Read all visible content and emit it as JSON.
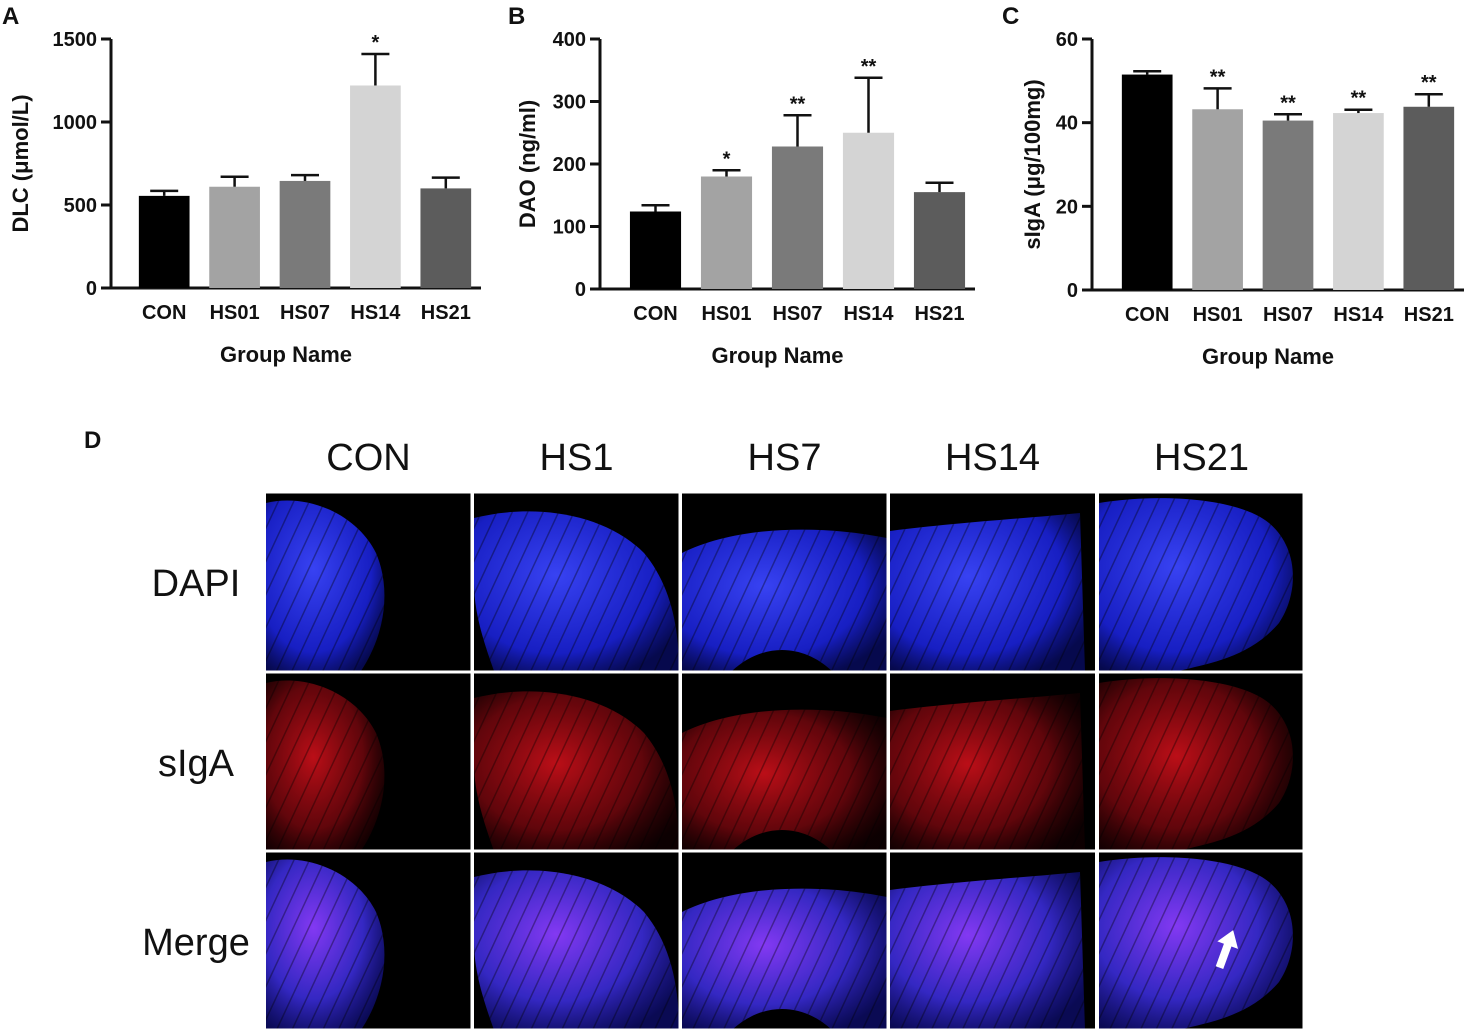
{
  "panel_letters": [
    "A",
    "B",
    "C",
    "D"
  ],
  "chart_data": [
    {
      "type": "bar",
      "panel": "A",
      "categories": [
        "CON",
        "HS01",
        "HS07",
        "HS14",
        "HS21"
      ],
      "values": [
        555,
        610,
        645,
        1220,
        600
      ],
      "errors": [
        30,
        60,
        35,
        190,
        65
      ],
      "significance": [
        "",
        "",
        "",
        "*",
        ""
      ],
      "colors": [
        "#000000",
        "#a3a3a3",
        "#7a7a7a",
        "#d4d4d4",
        "#5c5c5c"
      ],
      "xlabel": "Group Name",
      "ylabel": "DLC (μmol/L)",
      "ylim": [
        0,
        1500
      ],
      "yticks": [
        0,
        500,
        1000,
        1500
      ]
    },
    {
      "type": "bar",
      "panel": "B",
      "categories": [
        "CON",
        "HS01",
        "HS07",
        "HS14",
        "HS21"
      ],
      "values": [
        124,
        180,
        228,
        250,
        155
      ],
      "errors": [
        10,
        10,
        50,
        88,
        15
      ],
      "significance": [
        "",
        "*",
        "**",
        "**",
        ""
      ],
      "colors": [
        "#000000",
        "#a3a3a3",
        "#7a7a7a",
        "#d4d4d4",
        "#5c5c5c"
      ],
      "xlabel": "Group Name",
      "ylabel": "DAO (ng/ml)",
      "ylim": [
        0,
        400
      ],
      "yticks": [
        0,
        100,
        200,
        300,
        400
      ]
    },
    {
      "type": "bar",
      "panel": "C",
      "categories": [
        "CON",
        "HS01",
        "HS07",
        "HS14",
        "HS21"
      ],
      "values": [
        51.5,
        43.2,
        40.5,
        42.3,
        43.8
      ],
      "errors": [
        0.8,
        5.0,
        1.5,
        0.8,
        3.0
      ],
      "significance": [
        "",
        "**",
        "**",
        "**",
        "**"
      ],
      "colors": [
        "#000000",
        "#a3a3a3",
        "#7a7a7a",
        "#d4d4d4",
        "#5c5c5c"
      ],
      "xlabel": "Group Name",
      "ylabel": "sIgA (μg/100mg)",
      "ylim": [
        0,
        60
      ],
      "yticks": [
        0,
        20,
        40,
        60
      ]
    }
  ],
  "panel_d": {
    "letter": "D",
    "columns": [
      "CON",
      "HS1",
      "HS7",
      "HS14",
      "HS21"
    ],
    "rows": [
      "DAPI",
      "sIgA",
      "Merge"
    ],
    "row_colors": [
      "#1a22ff",
      "#ff1a1a",
      "#6a2dff"
    ],
    "arrow_color": "#ffffff"
  }
}
